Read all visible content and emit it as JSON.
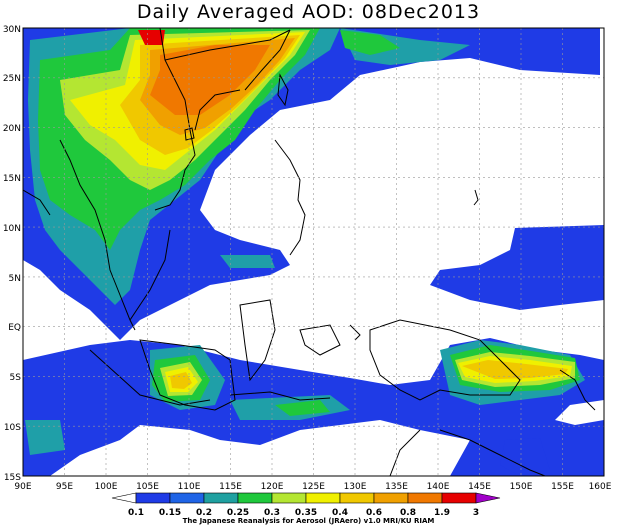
{
  "title": "Daily Averaged AOD: 08Dec2013",
  "credit": "The Japanese Reanalysis for Aerosol (JRAero) v1.0 MRI/KU RIAM",
  "map": {
    "lon_range": [
      90,
      160
    ],
    "lat_range": [
      -15,
      30
    ],
    "lon_ticks": [
      "90E",
      "95E",
      "100E",
      "105E",
      "110E",
      "115E",
      "120E",
      "125E",
      "130E",
      "135E",
      "140E",
      "145E",
      "150E",
      "155E",
      "160E"
    ],
    "lat_ticks": [
      "30N",
      "25N",
      "20N",
      "15N",
      "10N",
      "5N",
      "EQ",
      "5S",
      "10S",
      "15S"
    ]
  },
  "colorbar": {
    "levels": [
      "0.1",
      "0.15",
      "0.2",
      "0.25",
      "0.3",
      "0.35",
      "0.4",
      "0.6",
      "0.8",
      "1.9",
      "3"
    ],
    "colors": [
      "#ffffff",
      "#1f3be6",
      "#1f64e6",
      "#1fa0a0",
      "#1fc83c",
      "#b4e632",
      "#f0f000",
      "#f0c800",
      "#f0a000",
      "#f07800",
      "#e60000",
      "#a000c8"
    ]
  }
}
